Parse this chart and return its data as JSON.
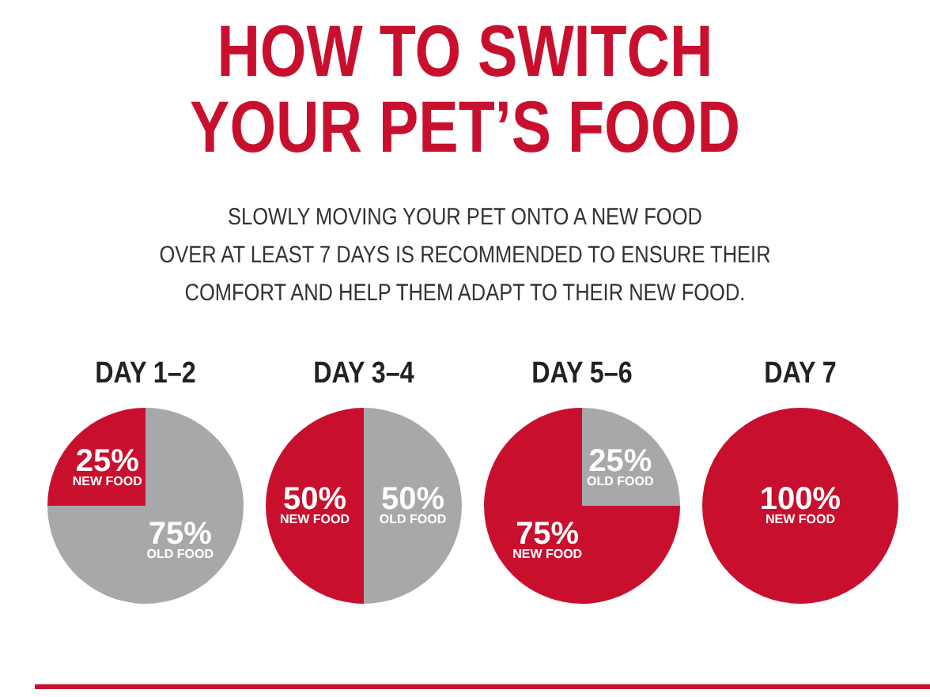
{
  "chart_data": [
    {
      "type": "other",
      "title": "HOW TO SWITCH\nYOUR PET’S FOOD",
      "subtitle": "SLOWLY MOVING YOUR PET ONTO A NEW FOOD\nOVER AT LEAST 7 DAYS IS RECOMMENDED TO ENSURE THEIR\nCOMFORT AND HELP THEM ADAPT TO THEIR NEW FOOD."
    },
    {
      "type": "pie",
      "title": "DAY 1–2",
      "categories": [
        "OLD FOOD",
        "NEW FOOD"
      ],
      "values": [
        75,
        25
      ],
      "colors": [
        "#a7a8aa",
        "#c8102e"
      ],
      "value_labels": [
        "75%",
        "25%"
      ]
    },
    {
      "type": "pie",
      "title": "DAY 3–4",
      "categories": [
        "OLD FOOD",
        "NEW FOOD"
      ],
      "values": [
        50,
        50
      ],
      "colors": [
        "#a7a8aa",
        "#c8102e"
      ],
      "value_labels": [
        "50%",
        "50%"
      ]
    },
    {
      "type": "pie",
      "title": "DAY 5–6",
      "categories": [
        "OLD FOOD",
        "NEW FOOD"
      ],
      "values": [
        25,
        75
      ],
      "colors": [
        "#a7a8aa",
        "#c8102e"
      ],
      "value_labels": [
        "25%",
        "75%"
      ]
    },
    {
      "type": "pie",
      "title": "DAY 7",
      "categories": [
        "NEW FOOD"
      ],
      "values": [
        100
      ],
      "colors": [
        "#c8102e"
      ],
      "value_labels": [
        "100%"
      ]
    }
  ]
}
